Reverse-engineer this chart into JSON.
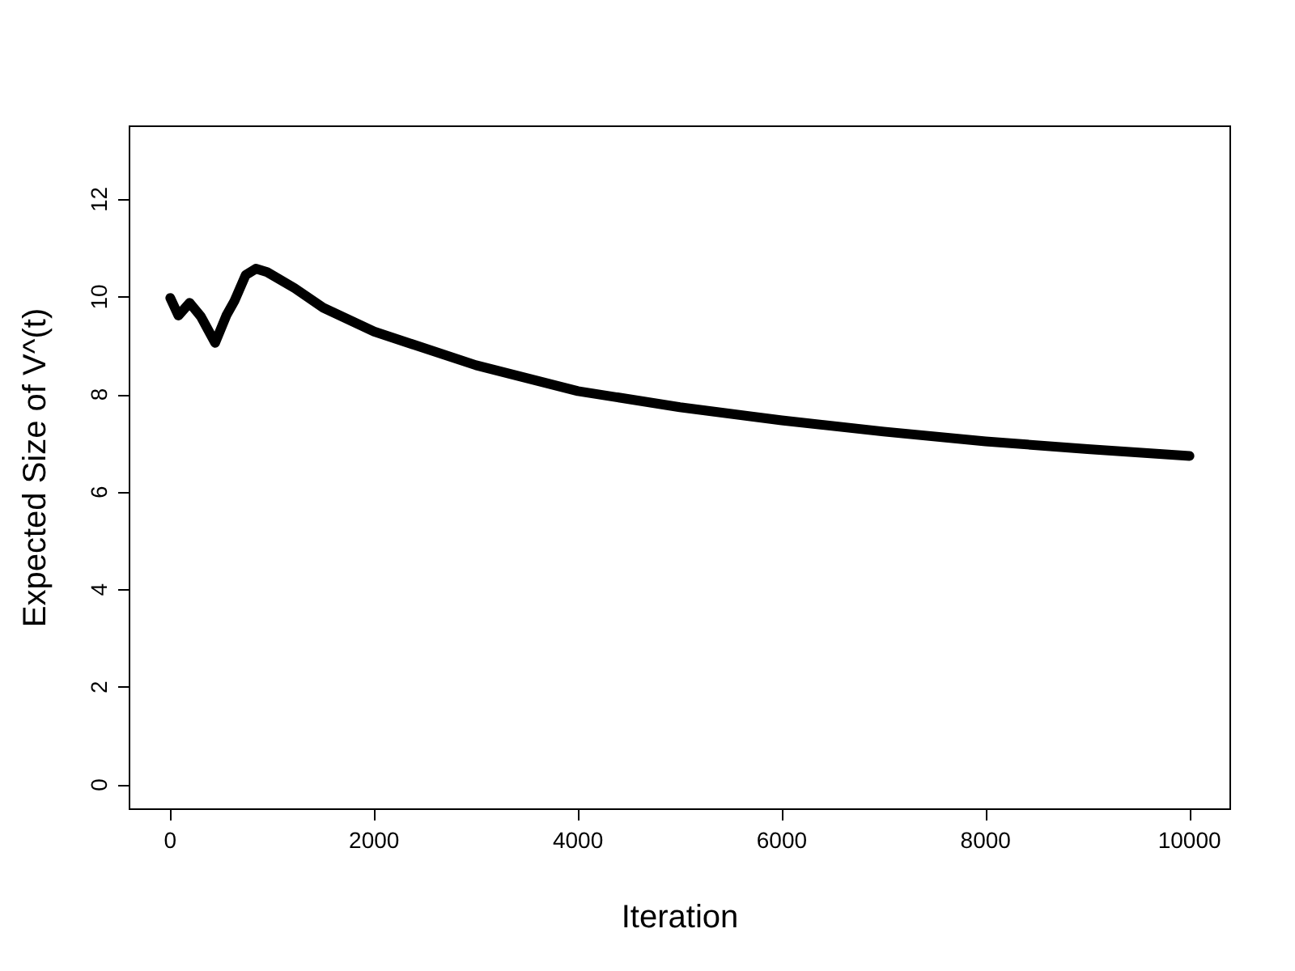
{
  "chart_data": {
    "type": "line",
    "xlabel": "Iteration",
    "ylabel": "Expected Size of V^(t)",
    "xlim": [
      -400,
      10400
    ],
    "ylim": [
      -0.5,
      13.5
    ],
    "xticks": [
      0,
      2000,
      4000,
      6000,
      8000,
      10000
    ],
    "yticks": [
      0,
      2,
      4,
      6,
      8,
      10,
      12
    ],
    "grid": false,
    "marker": "none",
    "line_style": "solid",
    "series": [
      {
        "color": "#000000",
        "x": [
          0,
          80,
          190,
          300,
          440,
          550,
          630,
          740,
          840,
          950,
          1220,
          1500,
          2000,
          3000,
          4000,
          5000,
          6000,
          7000,
          8000,
          9000,
          10000
        ],
        "values": [
          9.98,
          9.62,
          9.88,
          9.6,
          9.06,
          9.62,
          9.92,
          10.45,
          10.58,
          10.51,
          10.18,
          9.78,
          9.29,
          8.6,
          8.07,
          7.74,
          7.47,
          7.24,
          7.04,
          6.88,
          6.74
        ]
      }
    ]
  }
}
